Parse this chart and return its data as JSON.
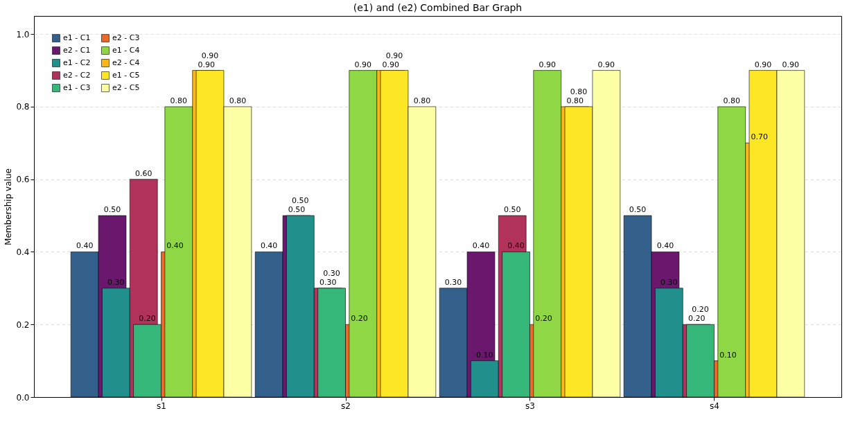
{
  "chart_data": {
    "type": "bar",
    "title": "(e1) and (e2) Combined Bar Graph",
    "ylabel": "Membership value",
    "categories": [
      "s1",
      "s2",
      "s3",
      "s4"
    ],
    "series": [
      {
        "name": "e1 - C1",
        "color": "#33618c",
        "values": [
          0.4,
          0.4,
          0.3,
          0.5
        ],
        "value_labels": [
          "0.40",
          "0.40",
          "0.30",
          "0.50"
        ]
      },
      {
        "name": "e2 - C1",
        "color": "#6a176e",
        "values": [
          0.5,
          0.5,
          0.4,
          0.4
        ],
        "value_labels": [
          "0.50",
          "0.50",
          "0.40",
          "0.40"
        ]
      },
      {
        "name": "e1 - C2",
        "color": "#21908d",
        "values": [
          0.3,
          0.5,
          0.1,
          0.3
        ],
        "value_labels": [
          "0.30",
          "0.50",
          "0.10",
          "0.30"
        ]
      },
      {
        "name": "e2 - C2",
        "color": "#b1325a",
        "values": [
          0.6,
          0.3,
          0.5,
          0.2
        ],
        "value_labels": [
          "0.60",
          "0.30",
          "0.50",
          "0.20"
        ]
      },
      {
        "name": "e1 - C3",
        "color": "#35b779",
        "values": [
          0.2,
          0.3,
          0.4,
          0.2
        ],
        "value_labels": [
          "0.20",
          "0.30",
          "0.40",
          "0.20"
        ]
      },
      {
        "name": "e2 - C3",
        "color": "#ed6925",
        "values": [
          0.4,
          0.2,
          0.2,
          0.1
        ],
        "value_labels": [
          "0.40",
          "0.20",
          "0.20",
          "0.10"
        ]
      },
      {
        "name": "e1 - C4",
        "color": "#8fd744",
        "values": [
          0.8,
          0.9,
          0.9,
          0.8
        ],
        "value_labels": [
          "0.80",
          "0.90",
          "0.90",
          "0.80"
        ]
      },
      {
        "name": "e2 - C4",
        "color": "#fbb61a",
        "values": [
          0.9,
          0.9,
          0.8,
          0.7
        ],
        "value_labels": [
          "0.90",
          "0.90",
          "0.80",
          "0.70"
        ]
      },
      {
        "name": "e1 - C5",
        "color": "#fde725",
        "values": [
          0.9,
          0.9,
          0.8,
          0.9
        ],
        "value_labels": [
          "0.90",
          "0.90",
          "0.80",
          "0.90"
        ]
      },
      {
        "name": "e2 - C5",
        "color": "#fcffa4",
        "values": [
          0.8,
          0.8,
          0.9,
          0.9
        ],
        "value_labels": [
          "0.80",
          "0.80",
          "0.90",
          "0.90"
        ]
      }
    ],
    "ylim": [
      0,
      1.05
    ],
    "yticks": [
      {
        "value": 0,
        "label": "0.0"
      },
      {
        "value": 0.2,
        "label": "0.2"
      },
      {
        "value": 0.4,
        "label": "0.4"
      },
      {
        "value": 0.6,
        "label": "0.6"
      },
      {
        "value": 0.8,
        "label": "0.8"
      },
      {
        "value": 1,
        "label": "1.0"
      }
    ],
    "grid": "y",
    "legend": "top left"
  }
}
